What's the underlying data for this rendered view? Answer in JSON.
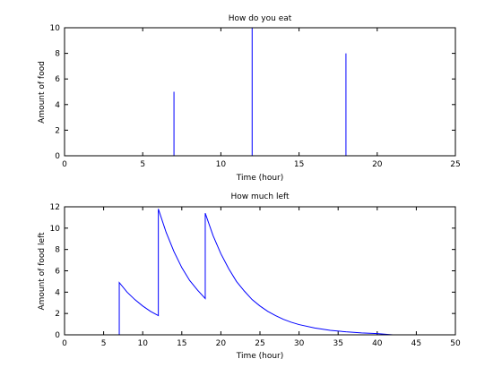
{
  "chart_data": [
    {
      "type": "line",
      "title": "How do you eat",
      "xlabel": "Time (hour)",
      "ylabel": "Amount of food",
      "xlim": [
        0,
        25
      ],
      "ylim": [
        0,
        10
      ],
      "xticks": [
        0,
        5,
        10,
        15,
        20,
        25
      ],
      "yticks": [
        0,
        2,
        4,
        6,
        8,
        10
      ],
      "grid": false,
      "color": "#0000ff",
      "series": [
        {
          "x": [
            0,
            7,
            7,
            7,
            12,
            12,
            12,
            18,
            18,
            18,
            25
          ],
          "y": [
            0,
            0,
            5,
            0,
            0,
            10,
            0,
            0,
            8,
            0,
            0
          ]
        }
      ]
    },
    {
      "type": "line",
      "title": "How much left",
      "xlabel": "Time (hour)",
      "ylabel": "Amount of food left",
      "xlim": [
        0,
        50
      ],
      "ylim": [
        0,
        12
      ],
      "xticks": [
        0,
        5,
        10,
        15,
        20,
        25,
        30,
        35,
        40,
        45,
        50
      ],
      "yticks": [
        0,
        2,
        4,
        6,
        8,
        10,
        12
      ],
      "grid": false,
      "color": "#0000ff",
      "series": [
        {
          "x": [
            7,
            7,
            8,
            9,
            10,
            11,
            12,
            12,
            13,
            14,
            15,
            16,
            17,
            18,
            18,
            19,
            20,
            21,
            22,
            23,
            24,
            25,
            26,
            27,
            28,
            29,
            30,
            32,
            34,
            36,
            38,
            40,
            42
          ],
          "y": [
            0,
            4.9,
            4.0,
            3.3,
            2.7,
            2.2,
            1.8,
            11.8,
            9.6,
            7.8,
            6.3,
            5.1,
            4.2,
            3.4,
            11.4,
            9.3,
            7.6,
            6.2,
            5.0,
            4.1,
            3.3,
            2.7,
            2.2,
            1.8,
            1.45,
            1.18,
            0.96,
            0.64,
            0.42,
            0.28,
            0.18,
            0.12,
            0.0
          ]
        }
      ]
    }
  ]
}
